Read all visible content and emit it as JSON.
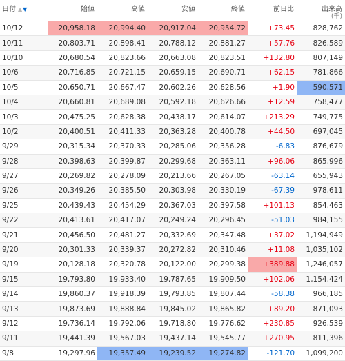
{
  "headers": {
    "date": "日付",
    "open": "始値",
    "high": "高値",
    "low": "安値",
    "close": "終値",
    "diff": "前日比",
    "volume": "出来高",
    "volume_unit": "(千)"
  },
  "colors": {
    "up": "#e60012",
    "down": "#0066cc",
    "highlight_high": "#f9a9a9",
    "highlight_low": "#8fb6f5"
  },
  "rows": [
    {
      "date": "10/12",
      "open": "20,958.18",
      "high": "20,994.40",
      "low": "20,917.04",
      "close": "20,954.72",
      "diff": "+73.45",
      "volume": "828,762",
      "hl": {
        "open": "red",
        "high": "red",
        "low": "red",
        "close": "red"
      }
    },
    {
      "date": "10/11",
      "open": "20,803.71",
      "high": "20,898.41",
      "low": "20,788.12",
      "close": "20,881.27",
      "diff": "+57.76",
      "volume": "826,589"
    },
    {
      "date": "10/10",
      "open": "20,680.54",
      "high": "20,823.66",
      "low": "20,663.08",
      "close": "20,823.51",
      "diff": "+132.80",
      "volume": "807,149"
    },
    {
      "date": "10/6",
      "open": "20,716.85",
      "high": "20,721.15",
      "low": "20,659.15",
      "close": "20,690.71",
      "diff": "+62.15",
      "volume": "781,866"
    },
    {
      "date": "10/5",
      "open": "20,650.71",
      "high": "20,667.47",
      "low": "20,602.26",
      "close": "20,628.56",
      "diff": "+1.90",
      "volume": "590,571",
      "hl": {
        "volume": "blue"
      }
    },
    {
      "date": "10/4",
      "open": "20,660.81",
      "high": "20,689.08",
      "low": "20,592.18",
      "close": "20,626.66",
      "diff": "+12.59",
      "volume": "758,477"
    },
    {
      "date": "10/3",
      "open": "20,475.25",
      "high": "20,628.38",
      "low": "20,438.17",
      "close": "20,614.07",
      "diff": "+213.29",
      "volume": "749,775"
    },
    {
      "date": "10/2",
      "open": "20,400.51",
      "high": "20,411.33",
      "low": "20,363.28",
      "close": "20,400.78",
      "diff": "+44.50",
      "volume": "697,045"
    },
    {
      "date": "9/29",
      "open": "20,315.34",
      "high": "20,370.33",
      "low": "20,285.06",
      "close": "20,356.28",
      "diff": "-6.83",
      "volume": "876,679"
    },
    {
      "date": "9/28",
      "open": "20,398.63",
      "high": "20,399.87",
      "low": "20,299.68",
      "close": "20,363.11",
      "diff": "+96.06",
      "volume": "865,996"
    },
    {
      "date": "9/27",
      "open": "20,269.82",
      "high": "20,278.09",
      "low": "20,213.66",
      "close": "20,267.05",
      "diff": "-63.14",
      "volume": "655,943"
    },
    {
      "date": "9/26",
      "open": "20,349.26",
      "high": "20,385.50",
      "low": "20,303.98",
      "close": "20,330.19",
      "diff": "-67.39",
      "volume": "978,611"
    },
    {
      "date": "9/25",
      "open": "20,439.43",
      "high": "20,454.29",
      "low": "20,367.03",
      "close": "20,397.58",
      "diff": "+101.13",
      "volume": "854,463"
    },
    {
      "date": "9/22",
      "open": "20,413.61",
      "high": "20,417.07",
      "low": "20,249.24",
      "close": "20,296.45",
      "diff": "-51.03",
      "volume": "984,155"
    },
    {
      "date": "9/21",
      "open": "20,456.50",
      "high": "20,481.27",
      "low": "20,332.69",
      "close": "20,347.48",
      "diff": "+37.02",
      "volume": "1,194,949"
    },
    {
      "date": "9/20",
      "open": "20,301.33",
      "high": "20,339.37",
      "low": "20,272.82",
      "close": "20,310.46",
      "diff": "+11.08",
      "volume": "1,035,102"
    },
    {
      "date": "9/19",
      "open": "20,128.18",
      "high": "20,320.78",
      "low": "20,122.00",
      "close": "20,299.38",
      "diff": "+389.88",
      "volume": "1,246,057",
      "hl": {
        "diff": "red"
      }
    },
    {
      "date": "9/15",
      "open": "19,793.80",
      "high": "19,933.40",
      "low": "19,787.65",
      "close": "19,909.50",
      "diff": "+102.06",
      "volume": "1,154,424"
    },
    {
      "date": "9/14",
      "open": "19,860.37",
      "high": "19,918.39",
      "low": "19,793.85",
      "close": "19,807.44",
      "diff": "-58.38",
      "volume": "966,185"
    },
    {
      "date": "9/13",
      "open": "19,873.69",
      "high": "19,888.84",
      "low": "19,845.02",
      "close": "19,865.82",
      "diff": "+89.20",
      "volume": "871,093"
    },
    {
      "date": "9/12",
      "open": "19,736.14",
      "high": "19,792.06",
      "low": "19,718.80",
      "close": "19,776.62",
      "diff": "+230.85",
      "volume": "926,539"
    },
    {
      "date": "9/11",
      "open": "19,441.39",
      "high": "19,567.03",
      "low": "19,437.14",
      "close": "19,545.77",
      "diff": "+270.95",
      "volume": "811,396"
    },
    {
      "date": "9/8",
      "open": "19,297.96",
      "high": "19,357.49",
      "low": "19,239.52",
      "close": "19,274.82",
      "diff": "-121.70",
      "volume": "1,099,200",
      "hl": {
        "high": "blue",
        "low": "blue",
        "close": "blue"
      }
    }
  ]
}
